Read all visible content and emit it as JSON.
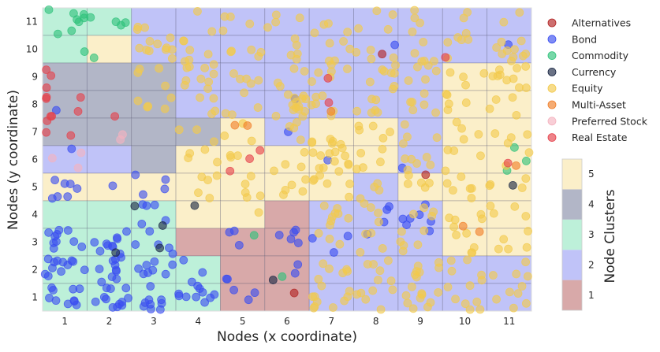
{
  "chart_data": {
    "type": "scatter",
    "subtype": "self-organizing-map node grid with jittered category points",
    "xlabel": "Nodes (x coordinate)",
    "ylabel": "Nodes (y coordinate)",
    "x_ticks": [
      "1",
      "2",
      "3",
      "4",
      "5",
      "6",
      "7",
      "8",
      "9",
      "10",
      "11"
    ],
    "y_ticks": [
      "1",
      "2",
      "3",
      "4",
      "5",
      "6",
      "7",
      "8",
      "9",
      "10",
      "11"
    ],
    "xlim": [
      0.5,
      11.5
    ],
    "ylim": [
      0.5,
      11.5
    ],
    "grid": false,
    "legend": {
      "placement": "right",
      "entries": [
        {
          "label": "Alternatives",
          "color": "#b22222"
        },
        {
          "label": "Bond",
          "color": "#3a4ef0"
        },
        {
          "label": "Commodity",
          "color": "#2ec27a"
        },
        {
          "label": "Currency",
          "color": "#1a2744"
        },
        {
          "label": "Equity",
          "color": "#f2c94c"
        },
        {
          "label": "Multi-Asset",
          "color": "#f07f2a"
        },
        {
          "label": "Preferred Stock",
          "color": "#f4b3c0"
        },
        {
          "label": "Real Estate",
          "color": "#e5404a"
        }
      ]
    },
    "colorbar": {
      "label": "Node Clusters",
      "ticks": [
        "1",
        "2",
        "3",
        "4",
        "5"
      ],
      "colors": {
        "1": "#d8a9a9",
        "2": "#c0c3f8",
        "3": "#bdf0d9",
        "4": "#b2b6c7",
        "5": "#fbefc9"
      }
    },
    "node_clusters_rows_top_to_bottom": [
      [
        3,
        3,
        2,
        2,
        2,
        2,
        2,
        2,
        2,
        2,
        2
      ],
      [
        3,
        5,
        2,
        2,
        2,
        2,
        2,
        2,
        2,
        2,
        2
      ],
      [
        4,
        4,
        4,
        2,
        2,
        2,
        2,
        2,
        2,
        5,
        5
      ],
      [
        4,
        4,
        4,
        2,
        2,
        2,
        2,
        2,
        2,
        5,
        5
      ],
      [
        4,
        4,
        4,
        4,
        5,
        2,
        5,
        5,
        2,
        5,
        5
      ],
      [
        2,
        2,
        4,
        5,
        5,
        5,
        5,
        5,
        2,
        5,
        5
      ],
      [
        5,
        5,
        5,
        5,
        5,
        5,
        5,
        2,
        5,
        5,
        5
      ],
      [
        3,
        3,
        3,
        5,
        5,
        1,
        2,
        2,
        2,
        5,
        5
      ],
      [
        3,
        3,
        3,
        1,
        1,
        1,
        2,
        2,
        2,
        5,
        5
      ],
      [
        3,
        3,
        3,
        3,
        1,
        1,
        2,
        2,
        2,
        2,
        2
      ],
      [
        3,
        3,
        3,
        3,
        1,
        1,
        2,
        2,
        2,
        2,
        2
      ]
    ],
    "node_counts": [
      {
        "category": "Alternatives",
        "nodes": [
          [
            8,
            10
          ],
          [
            9,
            5
          ],
          [
            6,
            1
          ]
        ]
      },
      {
        "category": "Bond",
        "nodes": [
          [
            1,
            1,
            10
          ],
          [
            2,
            1,
            12
          ],
          [
            3,
            1,
            9
          ],
          [
            4,
            1,
            10
          ],
          [
            5,
            1,
            3
          ],
          [
            1,
            2,
            12
          ],
          [
            2,
            2,
            10
          ],
          [
            3,
            2,
            8
          ],
          [
            4,
            2,
            3
          ],
          [
            5,
            2,
            2
          ],
          [
            6,
            2,
            2
          ],
          [
            1,
            3,
            10
          ],
          [
            2,
            3,
            10
          ],
          [
            3,
            3,
            5
          ],
          [
            5,
            3,
            3
          ],
          [
            6,
            3,
            5
          ],
          [
            7,
            3,
            3
          ],
          [
            8,
            3,
            1
          ],
          [
            9,
            3,
            1
          ],
          [
            3,
            4,
            5
          ],
          [
            8,
            4,
            3
          ],
          [
            9,
            4,
            6
          ],
          [
            1,
            5,
            7
          ],
          [
            2,
            5,
            1
          ],
          [
            3,
            5,
            4
          ],
          [
            1,
            6,
            1
          ],
          [
            7,
            6,
            1
          ],
          [
            8,
            10,
            1
          ],
          [
            11,
            10,
            1
          ],
          [
            6,
            7,
            1
          ],
          [
            6,
            8,
            1
          ],
          [
            1,
            8,
            1
          ],
          [
            9,
            6,
            1
          ]
        ]
      },
      {
        "category": "Commodity",
        "nodes": [
          [
            1,
            11,
            8
          ],
          [
            2,
            11,
            4
          ],
          [
            2,
            10,
            1
          ],
          [
            1,
            10,
            1
          ],
          [
            11,
            6,
            3
          ],
          [
            5,
            3,
            1
          ],
          [
            6,
            2,
            1
          ]
        ]
      },
      {
        "category": "Currency",
        "nodes": [
          [
            3,
            4,
            2
          ],
          [
            4,
            4,
            1
          ],
          [
            3,
            3,
            1
          ],
          [
            6,
            2,
            1
          ],
          [
            11,
            5,
            1
          ],
          [
            2,
            3,
            1
          ]
        ]
      },
      {
        "category": "Equity",
        "nodes": [
          [
            3,
            11,
            3
          ],
          [
            4,
            11,
            2
          ],
          [
            5,
            11,
            4
          ],
          [
            6,
            11,
            4
          ],
          [
            7,
            11,
            4
          ],
          [
            8,
            11,
            4
          ],
          [
            9,
            11,
            4
          ],
          [
            10,
            11,
            3
          ],
          [
            11,
            11,
            2
          ],
          [
            3,
            10,
            10
          ],
          [
            4,
            10,
            6
          ],
          [
            5,
            10,
            5
          ],
          [
            6,
            10,
            5
          ],
          [
            7,
            10,
            5
          ],
          [
            8,
            10,
            4
          ],
          [
            9,
            10,
            5
          ],
          [
            10,
            10,
            5
          ],
          [
            11,
            10,
            10
          ],
          [
            3,
            9,
            4
          ],
          [
            4,
            9,
            10
          ],
          [
            5,
            9,
            5
          ],
          [
            6,
            9,
            4
          ],
          [
            7,
            9,
            6
          ],
          [
            8,
            9,
            8
          ],
          [
            9,
            9,
            5
          ],
          [
            10,
            9,
            4
          ],
          [
            11,
            9,
            10
          ],
          [
            3,
            8,
            5
          ],
          [
            4,
            8,
            4
          ],
          [
            5,
            8,
            4
          ],
          [
            6,
            8,
            14
          ],
          [
            7,
            8,
            6
          ],
          [
            8,
            8,
            6
          ],
          [
            9,
            8,
            6
          ],
          [
            10,
            8,
            5
          ],
          [
            11,
            8,
            4
          ],
          [
            4,
            7,
            3
          ],
          [
            5,
            7,
            3
          ],
          [
            6,
            7,
            4
          ],
          [
            7,
            7,
            6
          ],
          [
            8,
            7,
            5
          ],
          [
            9,
            7,
            4
          ],
          [
            10,
            7,
            4
          ],
          [
            11,
            7,
            4
          ],
          [
            4,
            6,
            4
          ],
          [
            5,
            6,
            3
          ],
          [
            6,
            6,
            4
          ],
          [
            7,
            6,
            12
          ],
          [
            8,
            6,
            5
          ],
          [
            9,
            6,
            6
          ],
          [
            10,
            6,
            4
          ],
          [
            11,
            6,
            2
          ],
          [
            4,
            5,
            5
          ],
          [
            5,
            5,
            5
          ],
          [
            6,
            5,
            5
          ],
          [
            7,
            5,
            6
          ],
          [
            8,
            5,
            4
          ],
          [
            9,
            5,
            5
          ],
          [
            10,
            5,
            6
          ],
          [
            11,
            5,
            4
          ],
          [
            7,
            4,
            8
          ],
          [
            8,
            4,
            4
          ],
          [
            9,
            4,
            4
          ],
          [
            10,
            4,
            5
          ],
          [
            11,
            4,
            4
          ],
          [
            5,
            4,
            1
          ],
          [
            7,
            3,
            3
          ],
          [
            8,
            3,
            4
          ],
          [
            9,
            3,
            6
          ],
          [
            10,
            3,
            5
          ],
          [
            11,
            3,
            5
          ],
          [
            7,
            2,
            6
          ],
          [
            8,
            2,
            6
          ],
          [
            9,
            2,
            7
          ],
          [
            10,
            2,
            5
          ],
          [
            11,
            2,
            4
          ],
          [
            7,
            1,
            10
          ],
          [
            8,
            1,
            6
          ],
          [
            9,
            1,
            10
          ],
          [
            10,
            1,
            7
          ],
          [
            11,
            1,
            6
          ]
        ]
      },
      {
        "category": "Multi-Asset",
        "nodes": [
          [
            5,
            7,
            2
          ],
          [
            7,
            8,
            1
          ],
          [
            10,
            4,
            1
          ],
          [
            10,
            3,
            1
          ],
          [
            11,
            6,
            1
          ]
        ]
      },
      {
        "category": "Preferred Stock",
        "nodes": [
          [
            1,
            6,
            3
          ],
          [
            2,
            7,
            2
          ]
        ]
      },
      {
        "category": "Real Estate",
        "nodes": [
          [
            1,
            9,
            3
          ],
          [
            1,
            8,
            6
          ],
          [
            2,
            8,
            1
          ],
          [
            1,
            7,
            3
          ],
          [
            5,
            6,
            3
          ],
          [
            7,
            9,
            1
          ],
          [
            7,
            8,
            1
          ],
          [
            10,
            10,
            1
          ],
          [
            11,
            6,
            1
          ]
        ]
      }
    ]
  }
}
